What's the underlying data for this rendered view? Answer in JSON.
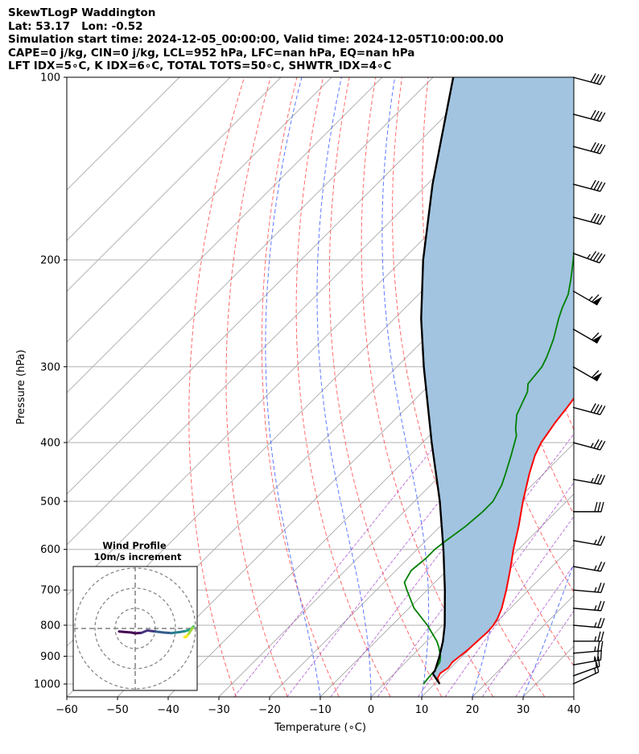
{
  "header": {
    "line1": "SkewTLogP Waddington",
    "line2": "Lat: 53.17   Lon: -0.52",
    "line3": "Simulation start time: 2024-12-05_00:00:00, Valid time: 2024-12-05T10:00:00.00",
    "line4": "CAPE=0 j/kg, CIN=0 j/kg, LCL=952 hPa, LFC=nan hPa, EQ=nan hPa",
    "line5": "LFT IDX=5∘C, K IDX=6∘C, TOTAL TOTS=50∘C, SHWTR_IDX=4∘C"
  },
  "chart_data": {
    "type": "skew-t log-p",
    "xlabel": "Temperature (∘C)",
    "ylabel": "Pressure (hPa)",
    "xlim": [
      -60,
      40
    ],
    "ylim": [
      1050,
      100
    ],
    "x_ticks": [
      -60,
      -50,
      -40,
      -30,
      -20,
      -10,
      0,
      10,
      20,
      30,
      40
    ],
    "y_ticks": [
      1000,
      900,
      800,
      700,
      600,
      500,
      400,
      300,
      200,
      100
    ],
    "grid": true,
    "temperature": {
      "color": "#ff0000",
      "points": [
        [
          1000,
          11
        ],
        [
          980,
          9.5
        ],
        [
          960,
          9
        ],
        [
          940,
          9.5
        ],
        [
          920,
          9.2
        ],
        [
          900,
          9.5
        ],
        [
          880,
          9.8
        ],
        [
          850,
          10
        ],
        [
          820,
          10.2
        ],
        [
          800,
          10
        ],
        [
          780,
          9.5
        ],
        [
          750,
          8.3
        ],
        [
          720,
          6.7
        ],
        [
          700,
          5.6
        ],
        [
          650,
          2.5
        ],
        [
          600,
          -1
        ],
        [
          550,
          -4.5
        ],
        [
          500,
          -8.6
        ],
        [
          450,
          -12.8
        ],
        [
          420,
          -15.3
        ],
        [
          400,
          -16.6
        ],
        [
          370,
          -17.8
        ],
        [
          350,
          -18.4
        ],
        [
          320,
          -19.6
        ],
        [
          300,
          -20.4
        ],
        [
          290,
          -21.3
        ],
        [
          280,
          -22.8
        ],
        [
          270,
          -24.8
        ],
        [
          250,
          -28.6
        ],
        [
          240,
          -31.3
        ],
        [
          228,
          -35
        ],
        [
          220,
          -37
        ],
        [
          210,
          -38.6
        ],
        [
          200,
          -39.2
        ],
        [
          180,
          -40
        ],
        [
          170,
          -40.9
        ],
        [
          160,
          -41.8
        ],
        [
          150,
          -43.6
        ],
        [
          140,
          -44
        ],
        [
          130,
          -44.3
        ],
        [
          120,
          -44.3
        ],
        [
          110,
          -45.2
        ],
        [
          100,
          -46
        ]
      ]
    },
    "dewpoint": {
      "color": "#008000",
      "points": [
        [
          1000,
          7.8
        ],
        [
          970,
          7.5
        ],
        [
          950,
          7.4
        ],
        [
          920,
          6.7
        ],
        [
          900,
          5.7
        ],
        [
          870,
          3.6
        ],
        [
          850,
          2
        ],
        [
          800,
          -3
        ],
        [
          750,
          -9
        ],
        [
          700,
          -14
        ],
        [
          680,
          -16
        ],
        [
          650,
          -17
        ],
        [
          620,
          -16.5
        ],
        [
          600,
          -16.5
        ],
        [
          580,
          -16
        ],
        [
          550,
          -15
        ],
        [
          520,
          -14.5
        ],
        [
          500,
          -14.5
        ],
        [
          470,
          -16
        ],
        [
          450,
          -17.5
        ],
        [
          420,
          -20
        ],
        [
          390,
          -22.8
        ],
        [
          380,
          -24.3
        ],
        [
          360,
          -26.9
        ],
        [
          330,
          -29.3
        ],
        [
          320,
          -30.8
        ],
        [
          300,
          -31.4
        ],
        [
          290,
          -32.3
        ],
        [
          280,
          -33.4
        ],
        [
          270,
          -34.6
        ],
        [
          250,
          -37.6
        ],
        [
          240,
          -39
        ],
        [
          228,
          -40.5
        ],
        [
          215,
          -43
        ],
        [
          200,
          -46.3
        ],
        [
          185,
          -50
        ],
        [
          180,
          -50.9
        ],
        [
          170,
          -51.4
        ],
        [
          160,
          -52.8
        ],
        [
          150,
          -54.2
        ],
        [
          140,
          -55.3
        ],
        [
          130,
          -56.4
        ],
        [
          120,
          -57
        ],
        [
          110,
          -58
        ],
        [
          100,
          -59.7
        ]
      ]
    },
    "parcel": {
      "color": "#000000",
      "points": [
        [
          1000,
          11
        ],
        [
          960,
          7.5
        ],
        [
          952,
          7.5
        ],
        [
          900,
          5.5
        ],
        [
          850,
          3.2
        ],
        [
          800,
          0.4
        ],
        [
          700,
          -6.5
        ],
        [
          600,
          -14.8
        ],
        [
          500,
          -25
        ],
        [
          400,
          -38.2
        ],
        [
          300,
          -54.7
        ],
        [
          250,
          -64.7
        ],
        [
          200,
          -75.9
        ],
        [
          150,
          -89
        ],
        [
          100,
          -106
        ]
      ]
    },
    "shading": {
      "color": "#a2c4e0",
      "between": [
        "temperature",
        "parcel"
      ]
    },
    "dry_adiabats": [
      -30,
      -20,
      -10,
      0,
      10,
      20,
      30,
      40,
      50,
      60,
      70,
      80,
      90,
      100
    ],
    "moist_adiabats": [
      -10,
      0,
      10,
      20,
      30
    ],
    "mixing_ratios": [
      0.4,
      1,
      2,
      4,
      7,
      10,
      16,
      24
    ],
    "wind_barbs": [
      {
        "p": 1000,
        "kt": 15,
        "dir": 245
      },
      {
        "p": 970,
        "kt": 20,
        "dir": 250
      },
      {
        "p": 930,
        "kt": 25,
        "dir": 260
      },
      {
        "p": 890,
        "kt": 25,
        "dir": 265
      },
      {
        "p": 850,
        "kt": 25,
        "dir": 270
      },
      {
        "p": 800,
        "kt": 25,
        "dir": 275
      },
      {
        "p": 750,
        "kt": 25,
        "dir": 275
      },
      {
        "p": 700,
        "kt": 25,
        "dir": 275
      },
      {
        "p": 640,
        "kt": 25,
        "dir": 280
      },
      {
        "p": 580,
        "kt": 25,
        "dir": 280
      },
      {
        "p": 520,
        "kt": 30,
        "dir": 270
      },
      {
        "p": 460,
        "kt": 35,
        "dir": 280
      },
      {
        "p": 400,
        "kt": 35,
        "dir": 285
      },
      {
        "p": 350,
        "kt": 40,
        "dir": 285
      },
      {
        "p": 300,
        "kt": 60,
        "dir": 300
      },
      {
        "p": 260,
        "kt": 60,
        "dir": 300
      },
      {
        "p": 225,
        "kt": 65,
        "dir": 300
      },
      {
        "p": 195,
        "kt": 45,
        "dir": 290
      },
      {
        "p": 170,
        "kt": 40,
        "dir": 285
      },
      {
        "p": 150,
        "kt": 40,
        "dir": 285
      },
      {
        "p": 130,
        "kt": 40,
        "dir": 285
      },
      {
        "p": 115,
        "kt": 40,
        "dir": 285
      },
      {
        "p": 100,
        "kt": 40,
        "dir": 285
      }
    ],
    "inset": {
      "title_line1": "Wind Profile",
      "title_line2": "10m/s increment",
      "type": "hodograph",
      "rings_ms": [
        10,
        20,
        30
      ],
      "hodograph_uv": [
        [
          -8,
          -1.5
        ],
        [
          -2,
          -2
        ],
        [
          0,
          -2.4
        ],
        [
          3,
          -2.2
        ],
        [
          6,
          -1
        ],
        [
          10,
          -1.5
        ],
        [
          14,
          -2
        ],
        [
          18,
          -2.3
        ],
        [
          22,
          -1.8
        ],
        [
          25,
          -1.3
        ],
        [
          27,
          -0.7
        ],
        [
          28,
          0
        ],
        [
          29,
          1
        ],
        [
          28.5,
          0.2
        ],
        [
          27,
          -2
        ],
        [
          26,
          -3.5
        ],
        [
          24.5,
          -4.3
        ],
        [
          25.5,
          -4.1
        ]
      ]
    }
  }
}
